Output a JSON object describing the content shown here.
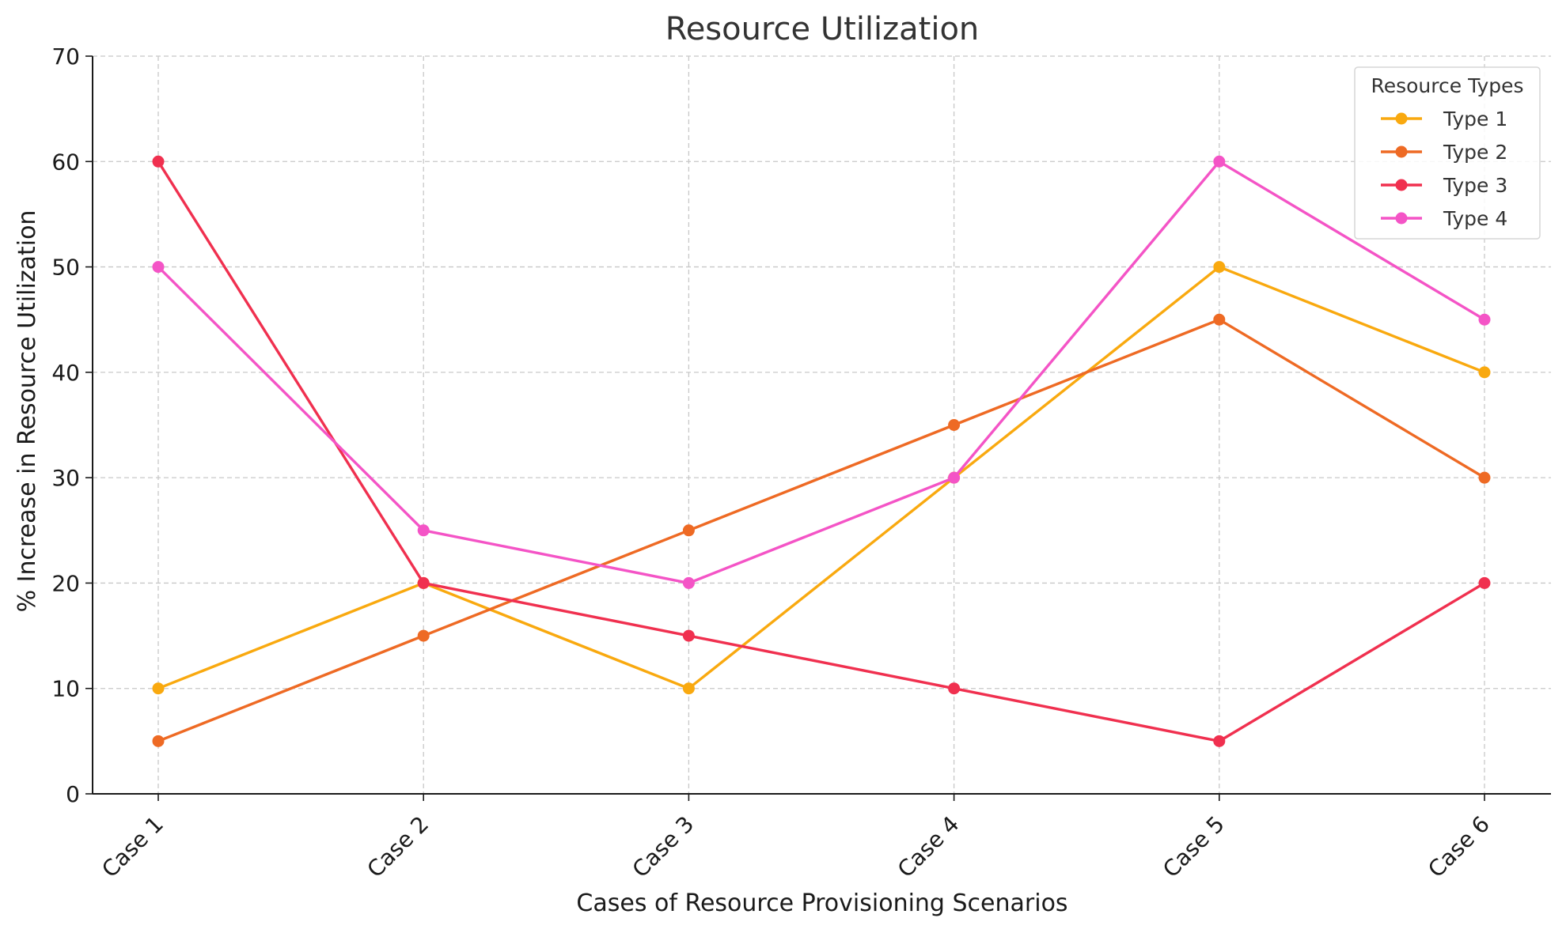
{
  "chart_data": {
    "type": "line",
    "title": "Resource Utilization",
    "xlabel": "Cases of Resource Provisioning Scenarios",
    "ylabel": "% Increase in Resource Utilization",
    "categories": [
      "Case 1",
      "Case 2",
      "Case 3",
      "Case 4",
      "Case 5",
      "Case 6"
    ],
    "ylim": [
      0,
      70
    ],
    "yticks": [
      0,
      10,
      20,
      30,
      40,
      50,
      60,
      70
    ],
    "grid": true,
    "legend": {
      "title": "Resource Types",
      "placement": "top-right"
    },
    "series": [
      {
        "name": "Type 1",
        "color": "#F9A90F",
        "values": [
          10,
          20,
          10,
          30,
          50,
          40
        ]
      },
      {
        "name": "Type 2",
        "color": "#EE6A24",
        "values": [
          5,
          15,
          25,
          35,
          45,
          30
        ]
      },
      {
        "name": "Type 3",
        "color": "#F0304F",
        "values": [
          60,
          20,
          15,
          10,
          5,
          20
        ]
      },
      {
        "name": "Type 4",
        "color": "#F454C6",
        "values": [
          50,
          25,
          20,
          30,
          60,
          45
        ]
      }
    ]
  }
}
